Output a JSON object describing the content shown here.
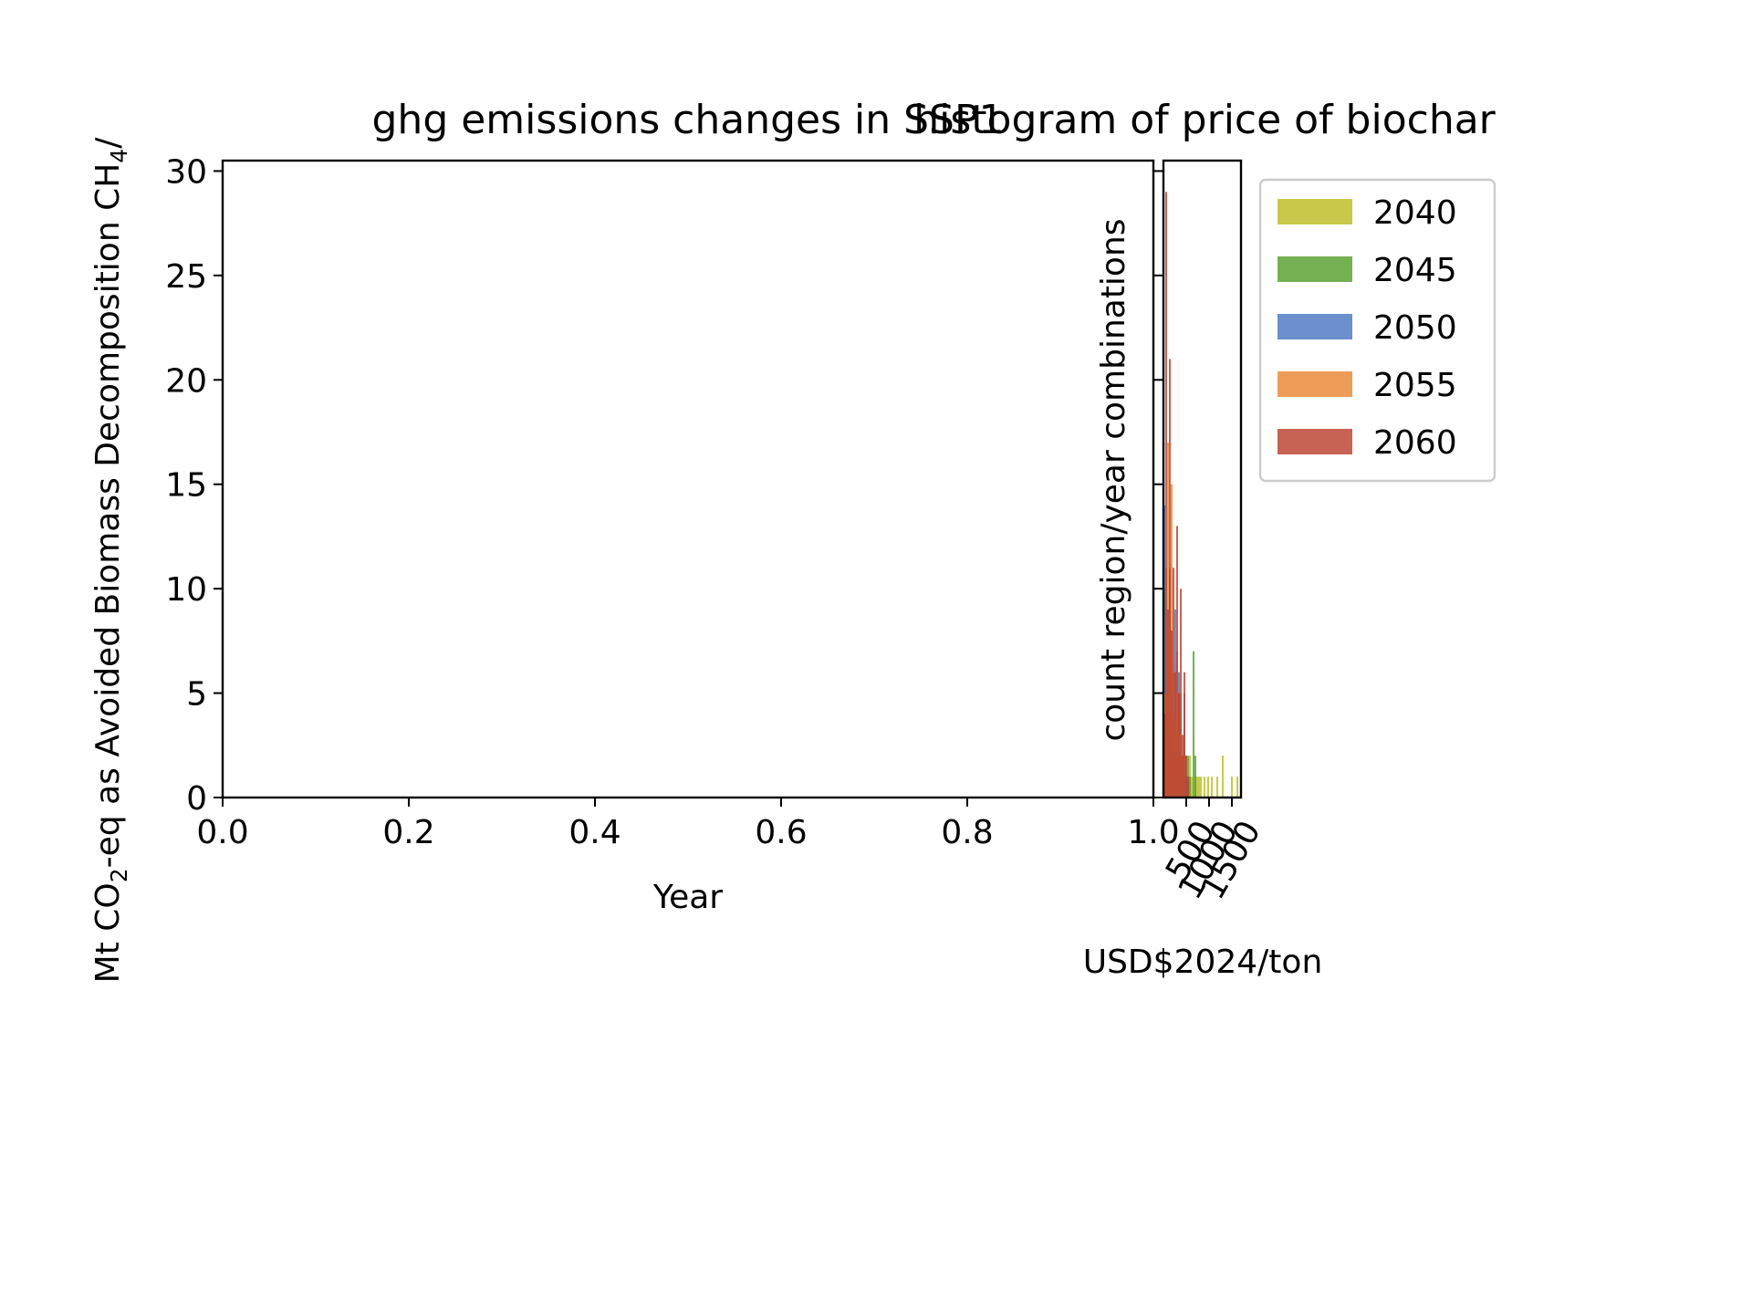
{
  "colors": {
    "2040": "#bcbd22",
    "2045": "#57a02c",
    "2050": "#4a78c2",
    "2055": "#ea8735",
    "2060": "#b9412f",
    "axis": "#000000",
    "legend_border": "#cccccc"
  },
  "chart_data": [
    {
      "type": "line",
      "title": "ghg emissions changes in SSP1",
      "xlabel": "Year",
      "ylabel_parts": {
        "pre": "Mt CO",
        "sub": "2",
        "mid": "-eq as Avoided Biomass Decomposition CH",
        "sub2": "4",
        "post": "/"
      },
      "xlim": [
        0.0,
        1.0
      ],
      "ylim": [
        0,
        30.5
      ],
      "xticks": [
        "0.0",
        "0.2",
        "0.4",
        "0.6",
        "0.8",
        "1.0"
      ],
      "yticks": [
        "0",
        "5",
        "10",
        "15",
        "20",
        "25",
        "30"
      ],
      "series": [],
      "grid": false
    },
    {
      "type": "bar",
      "title": "histogram of price of biochar",
      "xlabel": "USD$2024/ton",
      "ylabel": "count region/year combinations",
      "xlim": [
        0,
        1700
      ],
      "ylim": [
        0,
        30.5
      ],
      "xticks": [
        "500",
        "1000",
        "1500"
      ],
      "xtick_values": [
        500,
        1000,
        1500
      ],
      "yticks": [
        "0",
        "5",
        "10",
        "15",
        "20",
        "25",
        "30"
      ],
      "legend_position": "outside-right-top",
      "series": [
        {
          "name": "2040",
          "bins": [
            {
              "x": 0,
              "w": 40,
              "v": 2
            },
            {
              "x": 40,
              "w": 40,
              "v": 1
            },
            {
              "x": 80,
              "w": 40,
              "v": 3
            },
            {
              "x": 120,
              "w": 40,
              "v": 1
            },
            {
              "x": 160,
              "w": 40,
              "v": 2
            },
            {
              "x": 200,
              "w": 40,
              "v": 1
            },
            {
              "x": 240,
              "w": 40,
              "v": 2
            },
            {
              "x": 280,
              "w": 40,
              "v": 1
            },
            {
              "x": 320,
              "w": 40,
              "v": 2
            },
            {
              "x": 360,
              "w": 40,
              "v": 1
            },
            {
              "x": 400,
              "w": 40,
              "v": 1
            },
            {
              "x": 440,
              "w": 40,
              "v": 1
            },
            {
              "x": 520,
              "w": 40,
              "v": 1
            },
            {
              "x": 560,
              "w": 40,
              "v": 2
            },
            {
              "x": 600,
              "w": 40,
              "v": 1
            },
            {
              "x": 680,
              "w": 40,
              "v": 1
            },
            {
              "x": 720,
              "w": 40,
              "v": 1
            },
            {
              "x": 760,
              "w": 40,
              "v": 1
            },
            {
              "x": 800,
              "w": 40,
              "v": 1
            },
            {
              "x": 880,
              "w": 40,
              "v": 1
            },
            {
              "x": 960,
              "w": 40,
              "v": 1
            },
            {
              "x": 1040,
              "w": 40,
              "v": 1
            },
            {
              "x": 1160,
              "w": 40,
              "v": 1
            },
            {
              "x": 1280,
              "w": 40,
              "v": 2
            },
            {
              "x": 1480,
              "w": 40,
              "v": 1
            },
            {
              "x": 1600,
              "w": 40,
              "v": 1
            },
            {
              "x": 1680,
              "w": 20,
              "v": 1
            }
          ]
        },
        {
          "name": "2045",
          "bins": [
            {
              "x": 0,
              "w": 40,
              "v": 10
            },
            {
              "x": 40,
              "w": 40,
              "v": 6
            },
            {
              "x": 80,
              "w": 40,
              "v": 3
            },
            {
              "x": 120,
              "w": 40,
              "v": 4
            },
            {
              "x": 160,
              "w": 40,
              "v": 2
            },
            {
              "x": 200,
              "w": 40,
              "v": 3
            },
            {
              "x": 240,
              "w": 40,
              "v": 2
            },
            {
              "x": 280,
              "w": 40,
              "v": 2
            },
            {
              "x": 320,
              "w": 40,
              "v": 1
            },
            {
              "x": 360,
              "w": 40,
              "v": 2
            },
            {
              "x": 400,
              "w": 40,
              "v": 2
            },
            {
              "x": 440,
              "w": 40,
              "v": 1
            },
            {
              "x": 480,
              "w": 40,
              "v": 2
            },
            {
              "x": 520,
              "w": 40,
              "v": 2
            },
            {
              "x": 560,
              "w": 40,
              "v": 1
            },
            {
              "x": 640,
              "w": 40,
              "v": 7
            },
            {
              "x": 680,
              "w": 40,
              "v": 2
            }
          ]
        },
        {
          "name": "2050",
          "bins": [
            {
              "x": 0,
              "w": 40,
              "v": 14
            },
            {
              "x": 40,
              "w": 40,
              "v": 9
            },
            {
              "x": 80,
              "w": 40,
              "v": 6
            },
            {
              "x": 120,
              "w": 40,
              "v": 11
            },
            {
              "x": 160,
              "w": 40,
              "v": 5
            },
            {
              "x": 200,
              "w": 40,
              "v": 4
            },
            {
              "x": 240,
              "w": 40,
              "v": 9
            },
            {
              "x": 280,
              "w": 40,
              "v": 3
            },
            {
              "x": 320,
              "w": 40,
              "v": 6
            },
            {
              "x": 360,
              "w": 40,
              "v": 2
            },
            {
              "x": 400,
              "w": 40,
              "v": 2
            },
            {
              "x": 440,
              "w": 40,
              "v": 5
            },
            {
              "x": 480,
              "w": 40,
              "v": 1
            }
          ]
        },
        {
          "name": "2055",
          "bins": [
            {
              "x": 0,
              "w": 40,
              "v": 5
            },
            {
              "x": 40,
              "w": 40,
              "v": 11
            },
            {
              "x": 80,
              "w": 40,
              "v": 17
            },
            {
              "x": 120,
              "w": 40,
              "v": 8
            },
            {
              "x": 160,
              "w": 40,
              "v": 15
            },
            {
              "x": 200,
              "w": 40,
              "v": 6
            },
            {
              "x": 240,
              "w": 40,
              "v": 4
            },
            {
              "x": 280,
              "w": 40,
              "v": 7
            },
            {
              "x": 320,
              "w": 40,
              "v": 3
            },
            {
              "x": 360,
              "w": 40,
              "v": 5
            },
            {
              "x": 400,
              "w": 40,
              "v": 2
            },
            {
              "x": 440,
              "w": 40,
              "v": 2
            }
          ]
        },
        {
          "name": "2060",
          "bins": [
            {
              "x": 0,
              "w": 40,
              "v": 4
            },
            {
              "x": 40,
              "w": 40,
              "v": 29
            },
            {
              "x": 80,
              "w": 40,
              "v": 9
            },
            {
              "x": 120,
              "w": 40,
              "v": 21
            },
            {
              "x": 160,
              "w": 40,
              "v": 8
            },
            {
              "x": 200,
              "w": 40,
              "v": 11
            },
            {
              "x": 240,
              "w": 40,
              "v": 6
            },
            {
              "x": 280,
              "w": 40,
              "v": 13
            },
            {
              "x": 320,
              "w": 40,
              "v": 5
            },
            {
              "x": 360,
              "w": 40,
              "v": 10
            },
            {
              "x": 400,
              "w": 40,
              "v": 3
            },
            {
              "x": 440,
              "w": 40,
              "v": 6
            },
            {
              "x": 480,
              "w": 40,
              "v": 2
            },
            {
              "x": 520,
              "w": 40,
              "v": 1
            }
          ]
        }
      ]
    }
  ]
}
